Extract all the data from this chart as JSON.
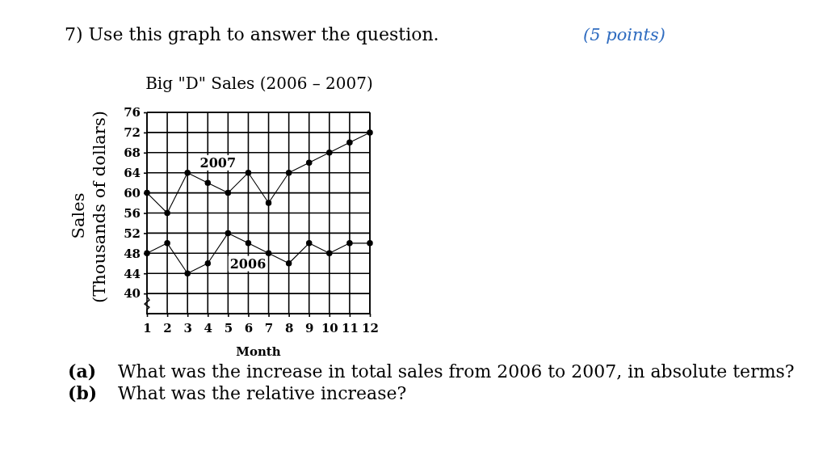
{
  "chart_data": {
    "type": "line",
    "title": "Big \"D\" Sales (2006 – 2007)",
    "xlabel": "Month",
    "ylabel": "Sales\n(Thousands of dollars)",
    "x": [
      1,
      2,
      3,
      4,
      5,
      6,
      7,
      8,
      9,
      10,
      11,
      12
    ],
    "series": [
      {
        "name": "2007",
        "color": "#000000",
        "values": [
          60,
          56,
          64,
          62,
          60,
          64,
          58,
          64,
          66,
          68,
          70,
          72
        ]
      },
      {
        "name": "2006",
        "color": "#000000",
        "values": [
          48,
          50,
          44,
          46,
          52,
          50,
          48,
          46,
          50,
          48,
          50,
          50
        ]
      }
    ],
    "xlim": [
      1,
      12
    ],
    "xticks": [
      1,
      2,
      3,
      4,
      5,
      6,
      7,
      8,
      9,
      10,
      11,
      12
    ],
    "ylim": [
      36,
      76
    ],
    "yticks": [
      40,
      44,
      48,
      52,
      56,
      60,
      64,
      68,
      72,
      76
    ],
    "grid": true,
    "marker": "circle",
    "line_style": "solid",
    "annotations": [
      "7) Use this graph to answer the question.",
      "(5 points)",
      "(a) What was the increase in total sales from 2006 to 2007, in absolute terms?",
      "(b) What was the relative increase?"
    ]
  }
}
